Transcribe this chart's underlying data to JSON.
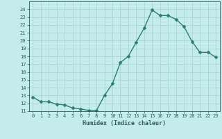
{
  "x": [
    0,
    1,
    2,
    3,
    4,
    5,
    6,
    7,
    8,
    9,
    10,
    11,
    12,
    13,
    14,
    15,
    16,
    17,
    18,
    19,
    20,
    21,
    22,
    23
  ],
  "y": [
    12.8,
    12.2,
    12.2,
    11.9,
    11.8,
    11.4,
    11.3,
    11.1,
    11.1,
    13.0,
    14.5,
    17.2,
    18.0,
    19.8,
    21.6,
    23.9,
    23.2,
    23.2,
    22.7,
    21.8,
    19.9,
    18.5,
    18.5,
    17.9
  ],
  "line_color": "#2d7d6e",
  "marker": "D",
  "markersize": 2.5,
  "bg_color": "#c4ecec",
  "grid_color": "#aad4d4",
  "xlabel": "Humidex (Indice chaleur)",
  "ylim": [
    11,
    25
  ],
  "xlim": [
    -0.5,
    23.5
  ],
  "yticks": [
    11,
    12,
    13,
    14,
    15,
    16,
    17,
    18,
    19,
    20,
    21,
    22,
    23,
    24
  ],
  "xticks": [
    0,
    1,
    2,
    3,
    4,
    5,
    6,
    7,
    8,
    9,
    10,
    11,
    12,
    13,
    14,
    15,
    16,
    17,
    18,
    19,
    20,
    21,
    22,
    23
  ],
  "tick_label_fontsize": 5.0,
  "xlabel_fontsize": 6.0,
  "tick_color": "#2d5a5a",
  "font_color": "#2d5a5a",
  "linewidth": 1.0
}
